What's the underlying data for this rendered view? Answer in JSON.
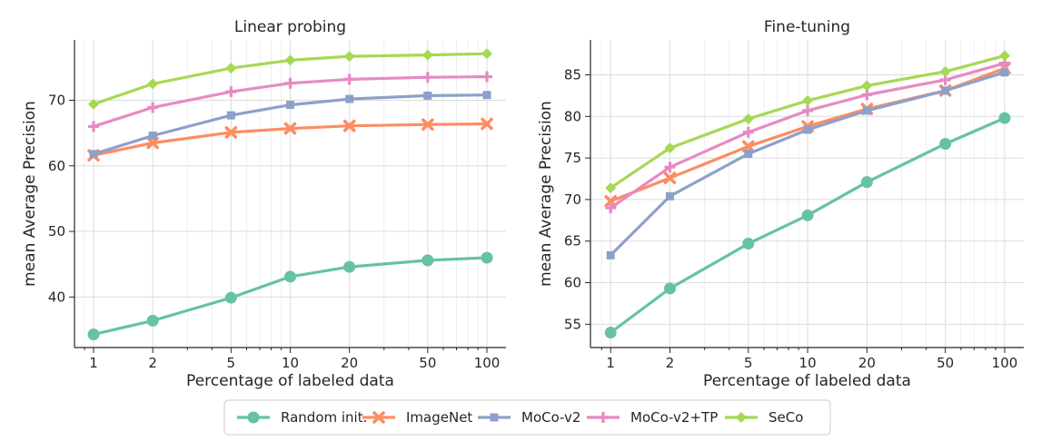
{
  "colors": {
    "Random init.": "#66c2a5",
    "ImageNet": "#fc8d62",
    "MoCo-v2": "#8da0cb",
    "MoCo-v2+TP": "#e78ac3",
    "SeCo": "#a6d854"
  },
  "markers": {
    "Random init.": "circle",
    "ImageNet": "x-cross",
    "MoCo-v2": "square",
    "MoCo-v2+TP": "plus",
    "SeCo": "diamond"
  },
  "legend": {
    "placement": "bottom-center",
    "entries": [
      "Random init.",
      "ImageNet",
      "MoCo-v2",
      "MoCo-v2+TP",
      "SeCo"
    ]
  },
  "chart_data": [
    {
      "type": "line",
      "title": "Linear probing",
      "xlabel": "Percentage of labeled data",
      "ylabel": "mean Average Precision",
      "xscale": "log",
      "x": [
        1,
        2,
        5,
        10,
        20,
        50,
        100
      ],
      "xticks": [
        "1",
        "2",
        "5",
        "10",
        "20",
        "50",
        "100"
      ],
      "yticks": [
        40,
        50,
        60,
        70
      ],
      "ylim": [
        32.3,
        79.2
      ],
      "grid": true,
      "series": [
        {
          "name": "Random init.",
          "values": [
            34.3,
            36.4,
            39.9,
            43.1,
            44.6,
            45.6,
            46.0
          ]
        },
        {
          "name": "ImageNet",
          "values": [
            61.6,
            63.5,
            65.1,
            65.7,
            66.1,
            66.3,
            66.4
          ]
        },
        {
          "name": "MoCo-v2",
          "values": [
            61.8,
            64.6,
            67.7,
            69.3,
            70.2,
            70.7,
            70.8
          ]
        },
        {
          "name": "MoCo-v2+TP",
          "values": [
            66.0,
            68.9,
            71.3,
            72.6,
            73.2,
            73.5,
            73.6
          ]
        },
        {
          "name": "SeCo",
          "values": [
            69.4,
            72.5,
            74.9,
            76.1,
            76.7,
            76.9,
            77.1
          ]
        }
      ]
    },
    {
      "type": "line",
      "title": "Fine-tuning",
      "xlabel": "Percentage of labeled data",
      "ylabel": "mean Average Precision",
      "xscale": "log",
      "x": [
        1,
        2,
        5,
        10,
        20,
        50,
        100
      ],
      "xticks": [
        "1",
        "2",
        "5",
        "10",
        "20",
        "50",
        "100"
      ],
      "yticks": [
        55,
        60,
        65,
        70,
        75,
        80,
        85
      ],
      "ylim": [
        52.2,
        89.2
      ],
      "grid": true,
      "series": [
        {
          "name": "Random init.",
          "values": [
            54.0,
            59.3,
            64.7,
            68.1,
            72.1,
            76.7,
            79.8
          ]
        },
        {
          "name": "ImageNet",
          "values": [
            69.8,
            72.6,
            76.4,
            78.8,
            80.9,
            83.1,
            85.8
          ]
        },
        {
          "name": "MoCo-v2",
          "values": [
            63.3,
            70.4,
            75.5,
            78.4,
            80.7,
            83.1,
            85.3
          ]
        },
        {
          "name": "MoCo-v2+TP",
          "values": [
            69.0,
            73.9,
            78.1,
            80.7,
            82.6,
            84.4,
            86.4
          ]
        },
        {
          "name": "SeCo",
          "values": [
            71.4,
            76.2,
            79.7,
            81.9,
            83.7,
            85.4,
            87.3
          ]
        }
      ]
    }
  ]
}
